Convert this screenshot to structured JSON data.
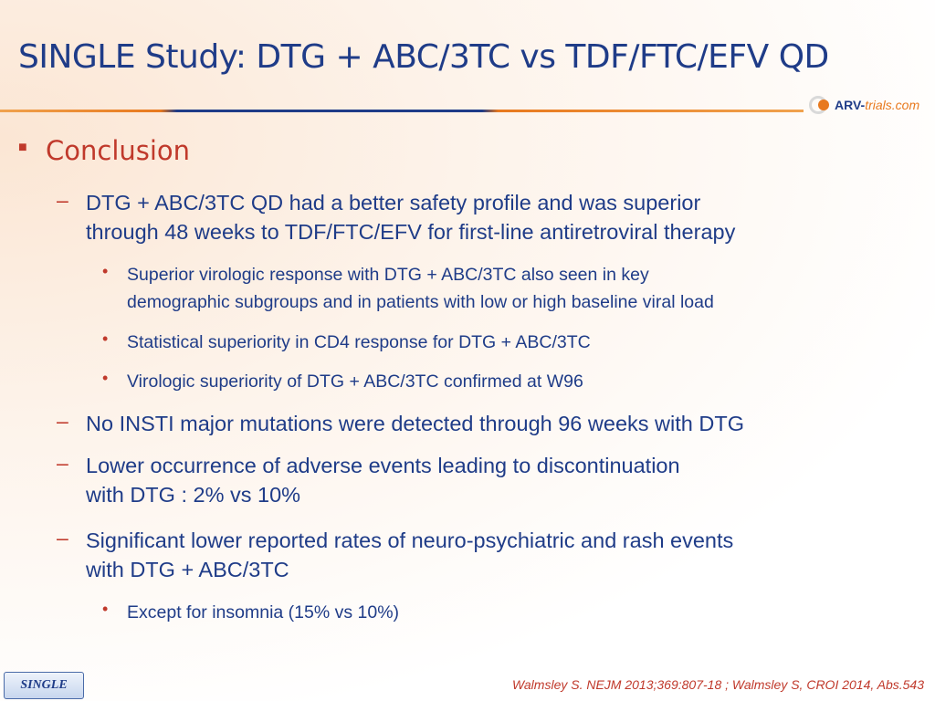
{
  "slide": {
    "title": "SINGLE Study: DTG + ABC/3TC vs TDF/FTC/EFV QD",
    "logo": {
      "brand": "ARV-",
      "brand_em": "trials",
      "suffix": ".com"
    },
    "conclusion": {
      "heading": "Conclusion",
      "items": [
        {
          "line1": "DTG + ABC/3TC QD had a better safety profile and was superior",
          "line2": "through 48 weeks to TDF/FTC/EFV for first-line antiretroviral therapy"
        },
        {
          "line1": "Superior virologic response with DTG + ABC/3TC also seen in key",
          "line2": "demographic subgroups and in patients with low or high baseline viral load"
        },
        {
          "line1": "Statistical superiority in CD4 response for DTG + ABC/3TC"
        },
        {
          "line1": "Virologic superiority of DTG + ABC/3TC confirmed at W96"
        },
        {
          "line1": "No INSTI major mutations were detected through 96 weeks with DTG"
        },
        {
          "line1": "Lower occurrence of adverse events leading to discontinuation",
          "line2": "with DTG : 2% vs 10%"
        },
        {
          "line1": "Significant lower reported rates of neuro-psychiatric and rash events",
          "line2": "with DTG + ABC/3TC"
        },
        {
          "line1": "Except for insomnia (15% vs 10%)"
        }
      ]
    },
    "footer": {
      "tag": "SINGLE",
      "citation": "Walmsley S. NEJM 2013;369:807-18 ; Walmsley S, CROI 2014, Abs.543"
    }
  }
}
